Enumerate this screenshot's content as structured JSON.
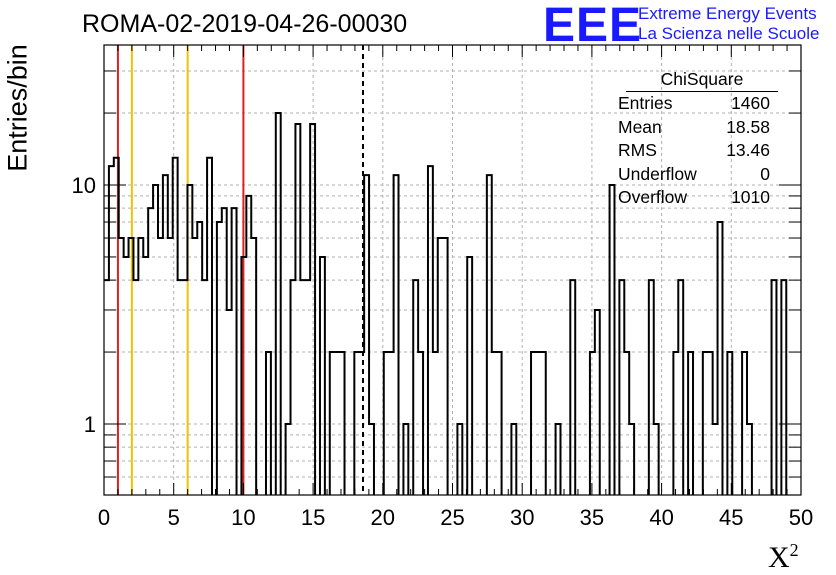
{
  "run_title": "ROMA-02-2019-04-26-00030",
  "logo": {
    "mark": "EEE",
    "line1": "Extreme Energy Events",
    "line2": "La Scienza nelle Scuole",
    "color": "#1a1aff"
  },
  "axes": {
    "ylabel": "Entries/bin",
    "xlabel_base": "X",
    "xlabel_sup": "2"
  },
  "stats_box": {
    "title": "ChiSquare",
    "rows": [
      {
        "label": "Entries",
        "value": "1460"
      },
      {
        "label": "Mean",
        "value": "18.58"
      },
      {
        "label": "RMS",
        "value": "13.46"
      },
      {
        "label": "Underflow",
        "value": "0"
      },
      {
        "label": "Overflow",
        "value": "1010"
      }
    ]
  },
  "chart_data": {
    "type": "histogram",
    "xlim": [
      0,
      50
    ],
    "ylim": [
      0.5,
      45
    ],
    "yscale": "log",
    "grid": true,
    "bin_width": 1,
    "xticks": [
      0,
      5,
      10,
      15,
      20,
      25,
      30,
      35,
      40,
      45,
      50
    ],
    "yticks": [
      1,
      10
    ],
    "counts": [
      4,
      12,
      13,
      6,
      5,
      6,
      4,
      6,
      5,
      8,
      10,
      6,
      11,
      6,
      13,
      4,
      4,
      10,
      6,
      7,
      4,
      13,
      0,
      7,
      8,
      3,
      8,
      0,
      5,
      9,
      6,
      0,
      0,
      2,
      0,
      20,
      0,
      1,
      4,
      18,
      4,
      4,
      18,
      0,
      5,
      0,
      2,
      2,
      2,
      0,
      0,
      2,
      2,
      11,
      1,
      0,
      0,
      2,
      2,
      11,
      0,
      1,
      0,
      4,
      2,
      0,
      12,
      2,
      6,
      6,
      0,
      0,
      1,
      0,
      5,
      0,
      0,
      0,
      11,
      2,
      2,
      0,
      0,
      1,
      0,
      0,
      0,
      2,
      2,
      2,
      0,
      0,
      1,
      0,
      0,
      4,
      0,
      0,
      0,
      2,
      3,
      0,
      0,
      10,
      0,
      4,
      2,
      1,
      0,
      0,
      0,
      4,
      1,
      0,
      0,
      0,
      2,
      4,
      0,
      2,
      0,
      0,
      2,
      2,
      1,
      7,
      0,
      2,
      0,
      0,
      2,
      1,
      0,
      0,
      0,
      0,
      4,
      0,
      4,
      0,
      0,
      0
    ],
    "markers": [
      {
        "x": 1,
        "color": "#e02020",
        "style": "solid"
      },
      {
        "x": 2,
        "color": "#f2c200",
        "style": "solid"
      },
      {
        "x": 6,
        "color": "#f2c200",
        "style": "solid"
      },
      {
        "x": 10,
        "color": "#e02020",
        "style": "solid"
      },
      {
        "x": 18.58,
        "color": "#000000",
        "style": "dashed"
      }
    ]
  }
}
